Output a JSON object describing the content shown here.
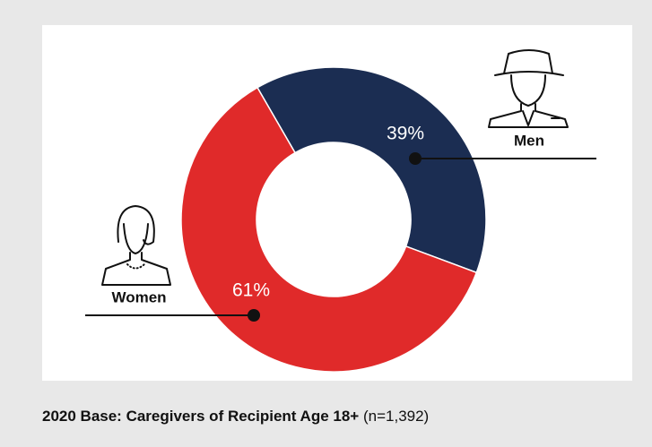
{
  "chart_data": {
    "type": "pie",
    "categories": [
      "Men",
      "Women"
    ],
    "values": [
      39,
      61
    ],
    "value_labels": [
      "39%",
      "61%"
    ],
    "colors": [
      "#1b2d52",
      "#e02a2a"
    ],
    "footnote": "2020 Base: Caregivers of Recipient Age 18+",
    "footnote_detail": "(n=1,392)"
  }
}
